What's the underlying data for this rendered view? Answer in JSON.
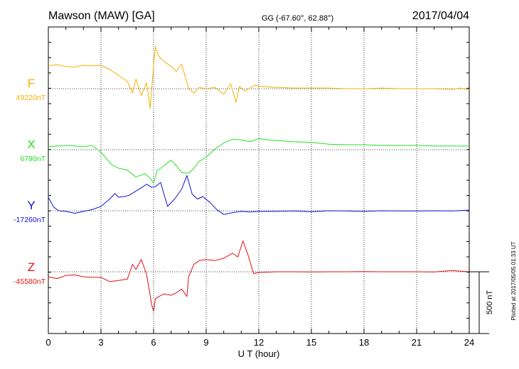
{
  "header": {
    "station": "Mawson (MAW)  [GA]",
    "coords": "GG (-67.60°,  62.88°)",
    "date": "2017/04/04"
  },
  "plotted_note": "Plotted at 2017/05/05 01:33 UT",
  "scale_bar_label": "500 nT",
  "colors": {
    "F": "#f5b000",
    "X": "#22e022",
    "Y": "#1010d8",
    "Z": "#e01010"
  },
  "chart_data": {
    "type": "line",
    "title": "Mawson (MAW)  [GA]",
    "xlabel": "U T (hour)",
    "xlim": [
      0,
      24
    ],
    "xticks": [
      0,
      3,
      6,
      9,
      12,
      15,
      18,
      21,
      24
    ],
    "grid": true,
    "scale_bar_nT": 500,
    "series": [
      {
        "name": "F",
        "baseline_label": "49220nT",
        "baseline": 49220,
        "x": [
          0,
          0.5,
          1,
          1.5,
          2,
          2.5,
          3,
          3.5,
          4,
          4.5,
          4.8,
          5,
          5.3,
          5.6,
          5.8,
          6,
          6.1,
          6.3,
          6.6,
          7,
          7.3,
          7.6,
          7.8,
          8,
          8.3,
          8.6,
          9,
          9.5,
          10,
          10.4,
          10.7,
          10.9,
          11.2,
          11.5,
          11.8,
          12,
          13,
          14,
          15,
          16,
          17,
          18,
          19,
          20,
          21,
          22,
          23,
          23.5,
          24
        ],
        "y": [
          49405,
          49415,
          49400,
          49395,
          49410,
          49405,
          49410,
          49375,
          49330,
          49280,
          49185,
          49300,
          49165,
          49270,
          49060,
          49405,
          49560,
          49480,
          49440,
          49400,
          49360,
          49420,
          49320,
          49220,
          49185,
          49230,
          49220,
          49230,
          49175,
          49260,
          49110,
          49240,
          49200,
          49225,
          49250,
          49240,
          49230,
          49225,
          49225,
          49225,
          49220,
          49220,
          49225,
          49220,
          49220,
          49220,
          49215,
          49225,
          49210
        ]
      },
      {
        "name": "X",
        "baseline_label": "6790nT",
        "baseline": 6790,
        "x": [
          0,
          0.5,
          1,
          1.5,
          2,
          2.5,
          3,
          3.3,
          3.6,
          4,
          4.5,
          5,
          5.5,
          5.8,
          6,
          6.2,
          6.5,
          7,
          7.3,
          7.6,
          8,
          8.3,
          8.6,
          9,
          9.5,
          10,
          10.5,
          11,
          11.5,
          12,
          12.5,
          13,
          14,
          15,
          16,
          17,
          18,
          19,
          20,
          21,
          22,
          23,
          24
        ],
        "y": [
          6815,
          6820,
          6825,
          6820,
          6815,
          6825,
          6770,
          6720,
          6670,
          6640,
          6625,
          6570,
          6595,
          6560,
          6520,
          6620,
          6650,
          6705,
          6660,
          6605,
          6600,
          6640,
          6695,
          6730,
          6795,
          6845,
          6875,
          6870,
          6855,
          6880,
          6870,
          6865,
          6855,
          6850,
          6835,
          6830,
          6830,
          6825,
          6825,
          6825,
          6820,
          6820,
          6820
        ]
      },
      {
        "name": "Y",
        "baseline_label": "-17260nT",
        "baseline": -17260,
        "x": [
          0,
          0.3,
          0.6,
          1,
          1.5,
          2,
          2.5,
          3,
          3.5,
          3.8,
          4,
          4.3,
          4.6,
          5,
          5.3,
          5.6,
          5.9,
          6.1,
          6.4,
          6.8,
          7.2,
          7.6,
          7.9,
          8.2,
          8.5,
          8.8,
          9.2,
          9.6,
          10,
          10.5,
          11,
          11.5,
          12,
          13,
          14,
          15,
          16,
          17,
          18,
          19,
          20,
          21,
          22,
          23,
          24
        ],
        "y": [
          -17150,
          -17230,
          -17260,
          -17265,
          -17280,
          -17265,
          -17250,
          -17225,
          -17165,
          -17120,
          -17150,
          -17145,
          -17135,
          -17100,
          -17075,
          -17045,
          -17070,
          -17065,
          -17030,
          -17225,
          -17165,
          -17085,
          -16975,
          -17125,
          -17165,
          -17145,
          -17190,
          -17250,
          -17290,
          -17275,
          -17265,
          -17270,
          -17265,
          -17265,
          -17262,
          -17268,
          -17260,
          -17262,
          -17265,
          -17260,
          -17262,
          -17262,
          -17260,
          -17262,
          -17255
        ]
      },
      {
        "name": "Z",
        "baseline_label": "-45580nT",
        "baseline": -45580,
        "x": [
          0,
          0.5,
          1,
          1.5,
          2,
          2.5,
          3,
          3.5,
          4,
          4.5,
          4.8,
          5,
          5.3,
          5.6,
          5.9,
          6,
          6.1,
          6.3,
          6.6,
          7,
          7.3,
          7.6,
          7.9,
          8,
          8.3,
          8.6,
          9,
          9.5,
          10,
          10.5,
          10.8,
          11.1,
          11.4,
          11.7,
          12,
          13,
          14,
          15,
          16,
          17,
          18,
          19,
          20,
          21,
          22,
          23,
          23.5,
          24
        ],
        "y": [
          -45620,
          -45635,
          -45610,
          -45605,
          -45620,
          -45625,
          -45625,
          -45660,
          -45650,
          -45640,
          -45520,
          -45560,
          -45480,
          -45600,
          -45850,
          -45900,
          -45800,
          -45780,
          -45760,
          -45770,
          -45750,
          -45720,
          -45780,
          -45620,
          -45520,
          -45490,
          -45480,
          -45490,
          -45470,
          -45430,
          -45460,
          -45330,
          -45450,
          -45595,
          -45585,
          -45580,
          -45580,
          -45582,
          -45580,
          -45580,
          -45578,
          -45580,
          -45580,
          -45580,
          -45582,
          -45570,
          -45575,
          -45580
        ]
      }
    ]
  }
}
